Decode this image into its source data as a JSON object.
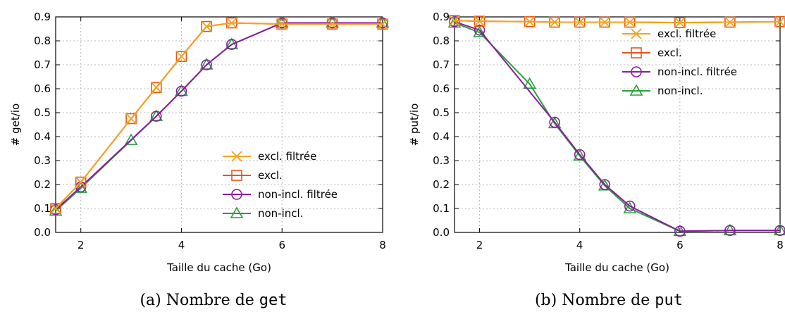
{
  "colors": {
    "excl_filtree": "#f5a21b",
    "excl": "#e6541d",
    "non_incl_filtree": "#8b1c9e",
    "non_incl": "#27a03a",
    "grid": "#bbbbbb"
  },
  "chart_data": [
    {
      "type": "line",
      "caption_prefix": "(a) Nombre de ",
      "caption_code": "get",
      "xlabel": "Taille du cache (Go)",
      "ylabel": "# get/io",
      "xlim": [
        1.5,
        8
      ],
      "ylim": [
        0,
        0.9
      ],
      "xticks": [
        2,
        4,
        6,
        8
      ],
      "yticks": [
        0.0,
        0.1,
        0.2,
        0.3,
        0.4,
        0.5,
        0.6,
        0.7,
        0.8,
        0.9
      ],
      "grid": true,
      "legend_position": "lower-right",
      "series": [
        {
          "name": "excl. filtrée",
          "marker": "x",
          "color": "#f5a21b",
          "x": [
            1.5,
            2,
            3,
            3.5,
            4,
            4.5,
            5,
            6,
            7,
            8
          ],
          "y": [
            0.1,
            0.21,
            0.475,
            0.605,
            0.735,
            0.86,
            0.875,
            0.87,
            0.87,
            0.87
          ]
        },
        {
          "name": "excl.",
          "marker": "square",
          "color": "#e6541d",
          "x": [
            1.5,
            2,
            3,
            3.5,
            4,
            4.5,
            5,
            6,
            7,
            8
          ],
          "y": [
            0.1,
            0.21,
            0.475,
            0.605,
            0.735,
            0.86,
            0.875,
            0.87,
            0.87,
            0.87
          ]
        },
        {
          "name": "non-incl. filtrée",
          "marker": "circle",
          "color": "#8b1c9e",
          "x": [
            1.5,
            2,
            3.5,
            4,
            4.5,
            5,
            6,
            7,
            8
          ],
          "y": [
            0.095,
            0.19,
            0.485,
            0.59,
            0.7,
            0.785,
            0.875,
            0.875,
            0.875
          ]
        },
        {
          "name": "non-incl.",
          "marker": "triangle",
          "color": "#27a03a",
          "x": [
            1.5,
            2,
            3,
            3.5,
            4,
            4.5,
            5,
            6,
            7,
            8
          ],
          "y": [
            0.09,
            0.185,
            0.385,
            0.485,
            0.59,
            0.7,
            0.785,
            0.875,
            0.875,
            0.875
          ]
        }
      ]
    },
    {
      "type": "line",
      "caption_prefix": "(b) Nombre de ",
      "caption_code": "put",
      "xlabel": "Taille du cache (Go)",
      "ylabel": "# put/io",
      "xlim": [
        1.5,
        8
      ],
      "ylim": [
        0,
        0.9
      ],
      "xticks": [
        2,
        4,
        6,
        8
      ],
      "yticks": [
        0.0,
        0.1,
        0.2,
        0.3,
        0.4,
        0.5,
        0.6,
        0.7,
        0.8,
        0.9
      ],
      "grid": true,
      "legend_position": "upper-right",
      "series": [
        {
          "name": "excl. filtrée",
          "marker": "x",
          "color": "#f5a21b",
          "x": [
            1.5,
            2,
            3,
            3.5,
            4,
            4.5,
            5,
            6,
            7,
            8
          ],
          "y": [
            0.885,
            0.882,
            0.88,
            0.878,
            0.878,
            0.878,
            0.878,
            0.876,
            0.878,
            0.88
          ]
        },
        {
          "name": "excl.",
          "marker": "square",
          "color": "#e6541d",
          "x": [
            1.5,
            2,
            3,
            3.5,
            4,
            4.5,
            5,
            6,
            7,
            8
          ],
          "y": [
            0.885,
            0.882,
            0.88,
            0.878,
            0.878,
            0.878,
            0.878,
            0.876,
            0.878,
            0.88
          ]
        },
        {
          "name": "non-incl. filtrée",
          "marker": "circle",
          "color": "#8b1c9e",
          "x": [
            1.5,
            2,
            3.5,
            4,
            4.5,
            5,
            6,
            7,
            8
          ],
          "y": [
            0.88,
            0.845,
            0.46,
            0.325,
            0.2,
            0.11,
            0.005,
            0.008,
            0.008
          ]
        },
        {
          "name": "non-incl.",
          "marker": "triangle",
          "color": "#27a03a",
          "x": [
            1.5,
            2,
            3,
            3.5,
            4,
            4.5,
            5,
            6,
            7,
            8
          ],
          "y": [
            0.875,
            0.835,
            0.62,
            0.455,
            0.32,
            0.195,
            0.1,
            0.005,
            0.008,
            0.008
          ]
        }
      ]
    }
  ]
}
